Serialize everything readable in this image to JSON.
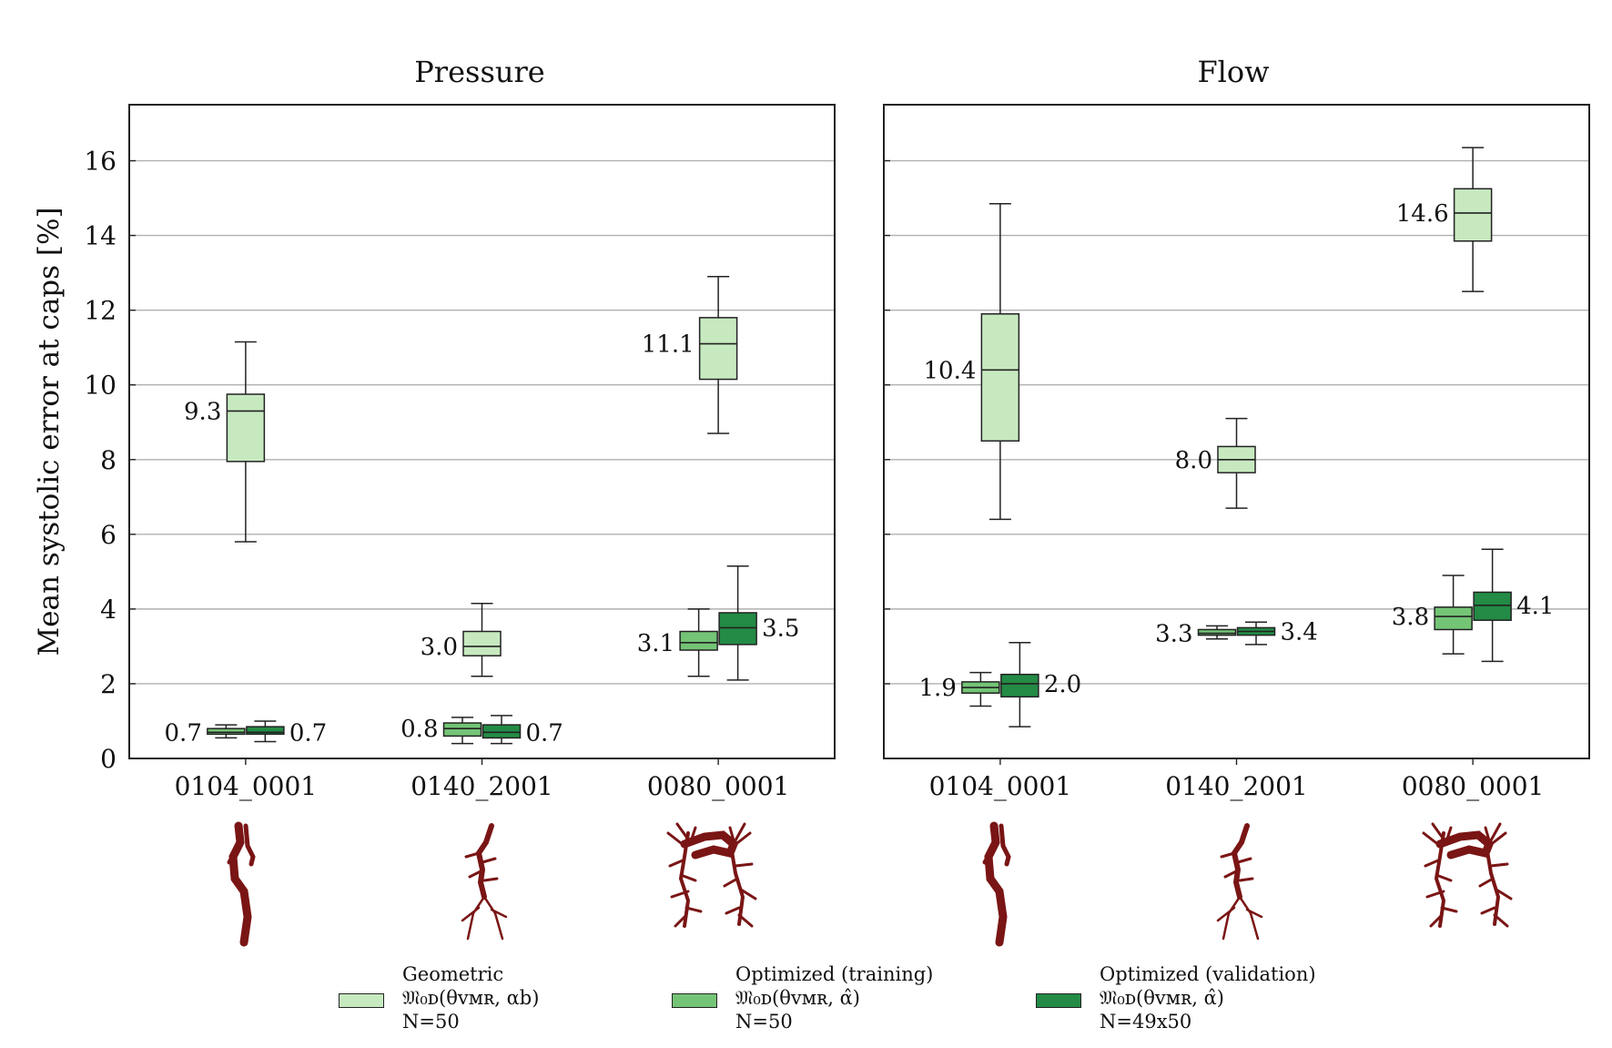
{
  "chart_data": [
    {
      "type": "box",
      "title": "Pressure",
      "ylabel": "Mean systolic error at caps [%]",
      "ylim": [
        0,
        17.5
      ],
      "yticks": [
        0,
        2,
        4,
        6,
        8,
        10,
        12,
        14,
        16
      ],
      "grid": true,
      "categories": [
        "0104_0001",
        "0140_2001",
        "0080_0001"
      ],
      "series": [
        {
          "name": "Geometric",
          "color": "#c7e9c0",
          "boxes": [
            {
              "category": "0104_0001",
              "whislo": 5.8,
              "q1": 7.95,
              "med": 9.3,
              "q3": 9.75,
              "whishi": 11.15,
              "label": "9.3"
            },
            {
              "category": "0140_2001",
              "whislo": 2.2,
              "q1": 2.75,
              "med": 3.0,
              "q3": 3.4,
              "whishi": 4.15,
              "label": "3.0"
            },
            {
              "category": "0080_0001",
              "whislo": 8.7,
              "q1": 10.15,
              "med": 11.1,
              "q3": 11.8,
              "whishi": 12.9,
              "label": "11.1"
            }
          ]
        },
        {
          "name": "Optimized (training)",
          "color": "#74c476",
          "boxes": [
            {
              "category": "0104_0001",
              "whislo": 0.55,
              "q1": 0.65,
              "med": 0.7,
              "q3": 0.8,
              "whishi": 0.9,
              "label": "0.7"
            },
            {
              "category": "0140_2001",
              "whislo": 0.4,
              "q1": 0.6,
              "med": 0.8,
              "q3": 0.95,
              "whishi": 1.1,
              "label": "0.8"
            },
            {
              "category": "0080_0001",
              "whislo": 2.2,
              "q1": 2.9,
              "med": 3.1,
              "q3": 3.4,
              "whishi": 4.0,
              "label": "3.1"
            }
          ]
        },
        {
          "name": "Optimized (validation)",
          "color": "#238b45",
          "boxes": [
            {
              "category": "0104_0001",
              "whislo": 0.45,
              "q1": 0.65,
              "med": 0.7,
              "q3": 0.85,
              "whishi": 1.0,
              "label": "0.7"
            },
            {
              "category": "0140_2001",
              "whislo": 0.4,
              "q1": 0.55,
              "med": 0.7,
              "q3": 0.9,
              "whishi": 1.15,
              "label": "0.7"
            },
            {
              "category": "0080_0001",
              "whislo": 2.1,
              "q1": 3.05,
              "med": 3.5,
              "q3": 3.9,
              "whishi": 5.15,
              "label": "3.5"
            }
          ]
        }
      ]
    },
    {
      "type": "box",
      "title": "Flow",
      "ylim": [
        0,
        17.5
      ],
      "yticks": [
        0,
        2,
        4,
        6,
        8,
        10,
        12,
        14,
        16
      ],
      "grid": true,
      "categories": [
        "0104_0001",
        "0140_2001",
        "0080_0001"
      ],
      "series": [
        {
          "name": "Geometric",
          "color": "#c7e9c0",
          "boxes": [
            {
              "category": "0104_0001",
              "whislo": 6.4,
              "q1": 8.5,
              "med": 10.4,
              "q3": 11.9,
              "whishi": 14.85,
              "label": "10.4"
            },
            {
              "category": "0140_2001",
              "whislo": 6.7,
              "q1": 7.65,
              "med": 8.0,
              "q3": 8.35,
              "whishi": 9.1,
              "label": "8.0"
            },
            {
              "category": "0080_0001",
              "whislo": 12.5,
              "q1": 13.85,
              "med": 14.6,
              "q3": 15.25,
              "whishi": 16.35,
              "label": "14.6"
            }
          ]
        },
        {
          "name": "Optimized (training)",
          "color": "#74c476",
          "boxes": [
            {
              "category": "0104_0001",
              "whislo": 1.4,
              "q1": 1.75,
              "med": 1.9,
              "q3": 2.05,
              "whishi": 2.3,
              "label": "1.9"
            },
            {
              "category": "0140_2001",
              "whislo": 3.2,
              "q1": 3.3,
              "med": 3.35,
              "q3": 3.45,
              "whishi": 3.55,
              "label": "3.3"
            },
            {
              "category": "0080_0001",
              "whislo": 2.8,
              "q1": 3.45,
              "med": 3.8,
              "q3": 4.05,
              "whishi": 4.9,
              "label": "3.8"
            }
          ]
        },
        {
          "name": "Optimized (validation)",
          "color": "#238b45",
          "boxes": [
            {
              "category": "0104_0001",
              "whislo": 0.85,
              "q1": 1.65,
              "med": 2.0,
              "q3": 2.25,
              "whishi": 3.1,
              "label": "2.0"
            },
            {
              "category": "0140_2001",
              "whislo": 3.05,
              "q1": 3.3,
              "med": 3.4,
              "q3": 3.5,
              "whishi": 3.65,
              "label": "3.4"
            },
            {
              "category": "0080_0001",
              "whislo": 2.6,
              "q1": 3.7,
              "med": 4.1,
              "q3": 4.45,
              "whishi": 5.6,
              "label": "4.1"
            }
          ]
        }
      ]
    }
  ],
  "legend": [
    {
      "title": "Geometric",
      "formula": "𝔐₀ᴅ(θᴠᴍʀ, αb)",
      "count": "N=50",
      "color": "#c7e9c0"
    },
    {
      "title": "Optimized (training)",
      "formula": "𝔐₀ᴅ(θᴠᴍʀ, α̂)",
      "count": "N=50",
      "color": "#74c476"
    },
    {
      "title": "Optimized (validation)",
      "formula": "𝔐₀ᴅ(θᴠᴍʀ, α̂)",
      "count": "N=49x50",
      "color": "#238b45"
    }
  ],
  "vessel_color": "#7a1515"
}
